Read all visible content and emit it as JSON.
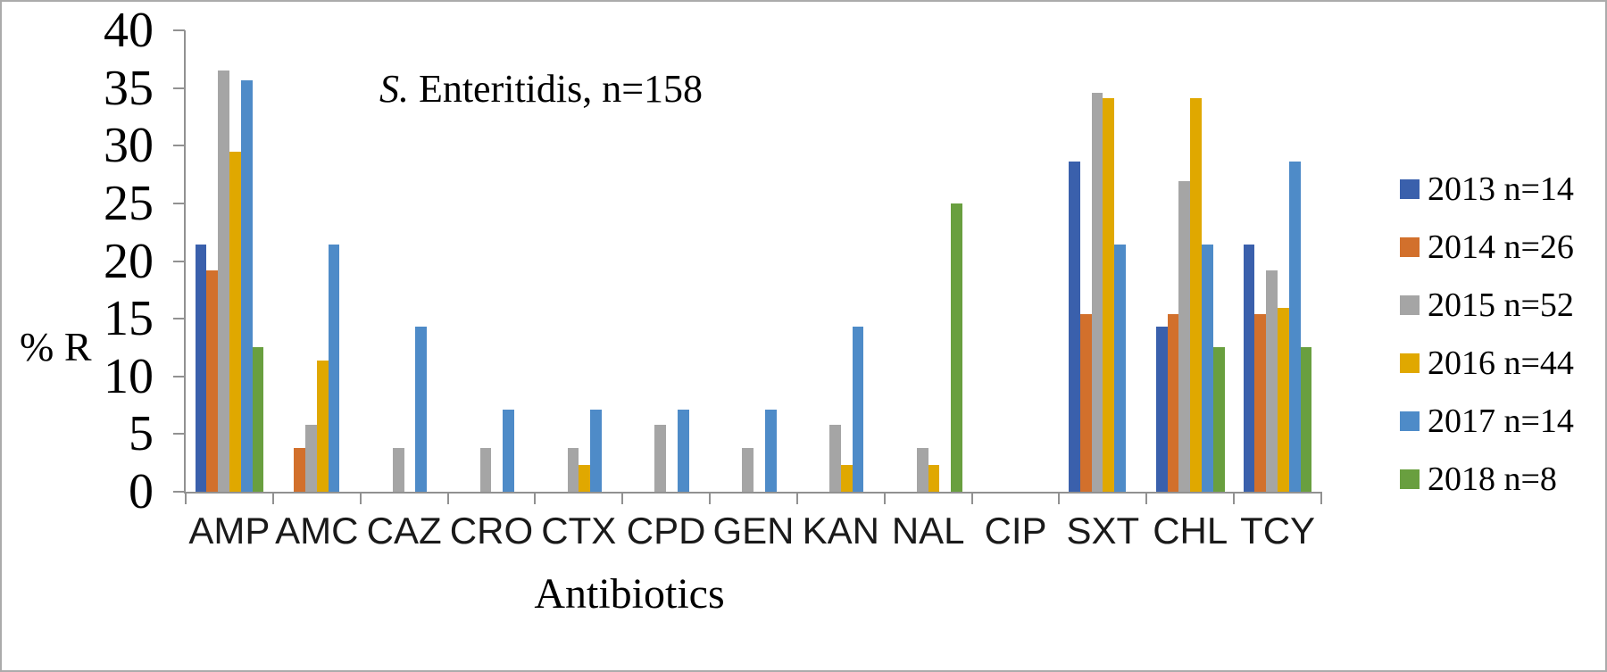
{
  "figure": {
    "background": "#FFFFFF",
    "border_color": "#ABABAB"
  },
  "chart_data": {
    "type": "bar",
    "title": "S. Enteritidis, n=158",
    "title_parts": [
      {
        "text": "S.",
        "italic": true
      },
      {
        "text": " Enteritidis, n=158",
        "italic": false
      }
    ],
    "xlabel": "Antibiotics",
    "ylabel": "% R",
    "ylim": [
      0,
      40
    ],
    "ytick_step": 5,
    "yticks": [
      0,
      5,
      10,
      15,
      20,
      25,
      30,
      35,
      40
    ],
    "grid": false,
    "legend_position": "right",
    "axis_color": "#919191",
    "text_color": "#000000",
    "categories": [
      "AMP",
      "AMC",
      "CAZ",
      "CRO",
      "CTX",
      "CPD",
      "GEN",
      "KAN",
      "NAL",
      "CIP",
      "SXT",
      "CHL",
      "TCY"
    ],
    "series": [
      {
        "name": "2013 n=14",
        "color": "#3A60AC",
        "values": [
          21.4,
          0,
          0,
          0,
          0,
          0,
          0,
          0,
          0,
          0,
          28.6,
          14.3,
          21.4
        ]
      },
      {
        "name": "2014 n=26",
        "color": "#D2702C",
        "values": [
          19.2,
          3.8,
          0,
          0,
          0,
          0,
          0,
          0,
          0,
          0,
          15.4,
          15.4,
          15.4
        ]
      },
      {
        "name": "2015 n=52",
        "color": "#A5A5A5",
        "values": [
          36.5,
          5.8,
          3.8,
          3.8,
          3.8,
          5.8,
          3.8,
          5.8,
          3.8,
          0,
          34.6,
          26.9,
          19.2
        ]
      },
      {
        "name": "2016 n=44",
        "color": "#E0A800",
        "values": [
          29.5,
          11.4,
          0,
          0,
          2.3,
          0,
          0,
          2.3,
          2.3,
          0,
          34.1,
          34.1,
          15.9
        ]
      },
      {
        "name": "2017 n=14",
        "color": "#4E8BC8",
        "values": [
          35.7,
          21.4,
          14.3,
          7.1,
          7.1,
          7.1,
          7.1,
          14.3,
          0,
          0,
          21.4,
          21.4,
          28.6
        ]
      },
      {
        "name": "2018 n=8",
        "color": "#699F3F",
        "values": [
          12.5,
          0,
          0,
          0,
          0,
          0,
          0,
          0,
          25.0,
          0,
          0,
          12.5,
          12.5
        ]
      }
    ]
  }
}
